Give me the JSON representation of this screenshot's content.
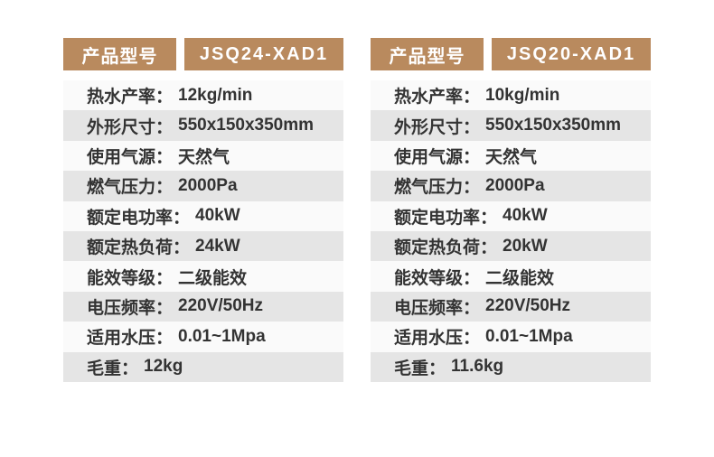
{
  "colors": {
    "header_bg": "#b98a5e",
    "header_text": "#ffffff",
    "row_light": "#fafafa",
    "row_dark": "#e5e5e5",
    "text": "#333333",
    "page_bg": "#ffffff"
  },
  "tables": [
    {
      "header": {
        "label": "产品型号",
        "model": "JSQ24-XAD1"
      },
      "rows": [
        {
          "label": "热水产率：",
          "value": "12kg/min"
        },
        {
          "label": "外形尺寸：",
          "value": "550x150x350mm"
        },
        {
          "label": "使用气源：",
          "value": "天然气"
        },
        {
          "label": "燃气压力：",
          "value": "2000Pa"
        },
        {
          "label": "额定电功率：",
          "value": "40kW"
        },
        {
          "label": "额定热负荷：",
          "value": "24kW"
        },
        {
          "label": "能效等级：",
          "value": "二级能效"
        },
        {
          "label": "电压频率：",
          "value": "220V/50Hz"
        },
        {
          "label": "适用水压：",
          "value": "0.01~1Mpa"
        },
        {
          "label": "毛重：",
          "value": "12kg"
        }
      ]
    },
    {
      "header": {
        "label": "产品型号",
        "model": "JSQ20-XAD1"
      },
      "rows": [
        {
          "label": "热水产率：",
          "value": "10kg/min"
        },
        {
          "label": "外形尺寸：",
          "value": "550x150x350mm"
        },
        {
          "label": "使用气源：",
          "value": "天然气"
        },
        {
          "label": "燃气压力：",
          "value": "2000Pa"
        },
        {
          "label": "额定电功率：",
          "value": "40kW"
        },
        {
          "label": "额定热负荷：",
          "value": "20kW"
        },
        {
          "label": "能效等级：",
          "value": "二级能效"
        },
        {
          "label": "电压频率：",
          "value": "220V/50Hz"
        },
        {
          "label": "适用水压：",
          "value": "0.01~1Mpa"
        },
        {
          "label": "毛重：",
          "value": "11.6kg"
        }
      ]
    }
  ]
}
